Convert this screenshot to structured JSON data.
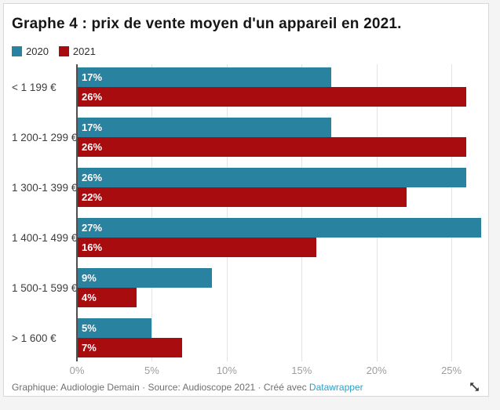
{
  "page": {
    "background_color": "#f4f4f4",
    "card_background": "#ffffff",
    "card_border_color": "#d8d8d8"
  },
  "chart": {
    "title": "Graphe 4 : prix de vente moyen d'un appareil en 2021."
  },
  "chart_data": {
    "type": "bar",
    "orientation": "horizontal",
    "title": "Graphe 4 : prix de vente moyen d'un appareil en 2021.",
    "categories": [
      "< 1 199 €",
      "1 200-1 299 €",
      "1 300-1 399 €",
      "1 400-1 499 €",
      "1 500-1 599 €",
      "> 1 600 €"
    ],
    "series": [
      {
        "name": "2020",
        "color": "#2882a0",
        "values": [
          17,
          17,
          26,
          27,
          9,
          5
        ]
      },
      {
        "name": "2021",
        "color": "#a90c0f",
        "values": [
          26,
          26,
          22,
          16,
          4,
          7
        ]
      }
    ],
    "value_suffix": "%",
    "bar_labels": "inside-start",
    "x_ticks": [
      "0%",
      "5%",
      "10%",
      "15%",
      "20%",
      "25%"
    ],
    "x_tick_values": [
      0,
      5,
      10,
      15,
      20,
      25
    ],
    "xlim": [
      0,
      27.3
    ],
    "xlabel": "",
    "ylabel": "",
    "grid": true,
    "legend_position": "top-left",
    "grid_color": "#e3e3e3",
    "baseline_color": "#4f4f4f"
  },
  "footer": {
    "prefix": "Graphique: Audiologie Demain · Source: Audioscope 2021 · Créé avec",
    "link_label": "Datawrapper",
    "link_color": "#2b9fc7"
  },
  "icons": {
    "resize_handle": "diagonal-resize-arrow"
  }
}
